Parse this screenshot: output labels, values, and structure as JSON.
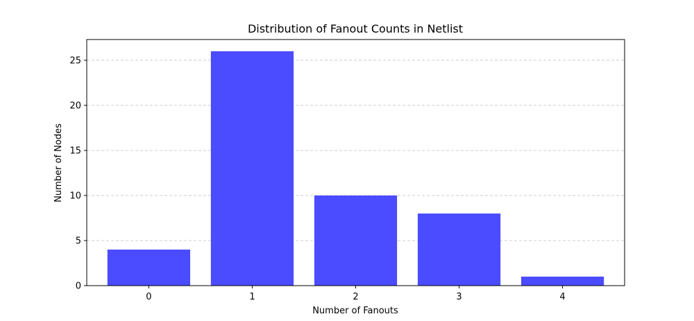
{
  "chart_data": {
    "type": "bar",
    "title": "Distribution of Fanout Counts in Netlist",
    "xlabel": "Number of Fanouts",
    "ylabel": "Number of Nodes",
    "categories": [
      "0",
      "1",
      "2",
      "3",
      "4"
    ],
    "values": [
      4,
      26,
      10,
      8,
      1
    ],
    "ylim": [
      0,
      27.3
    ],
    "yticks": [
      "0",
      "5",
      "10",
      "15",
      "20",
      "25"
    ],
    "grid": "y-dashed",
    "bar_color": "#4b4bff",
    "grid_color": "#cccccc"
  }
}
